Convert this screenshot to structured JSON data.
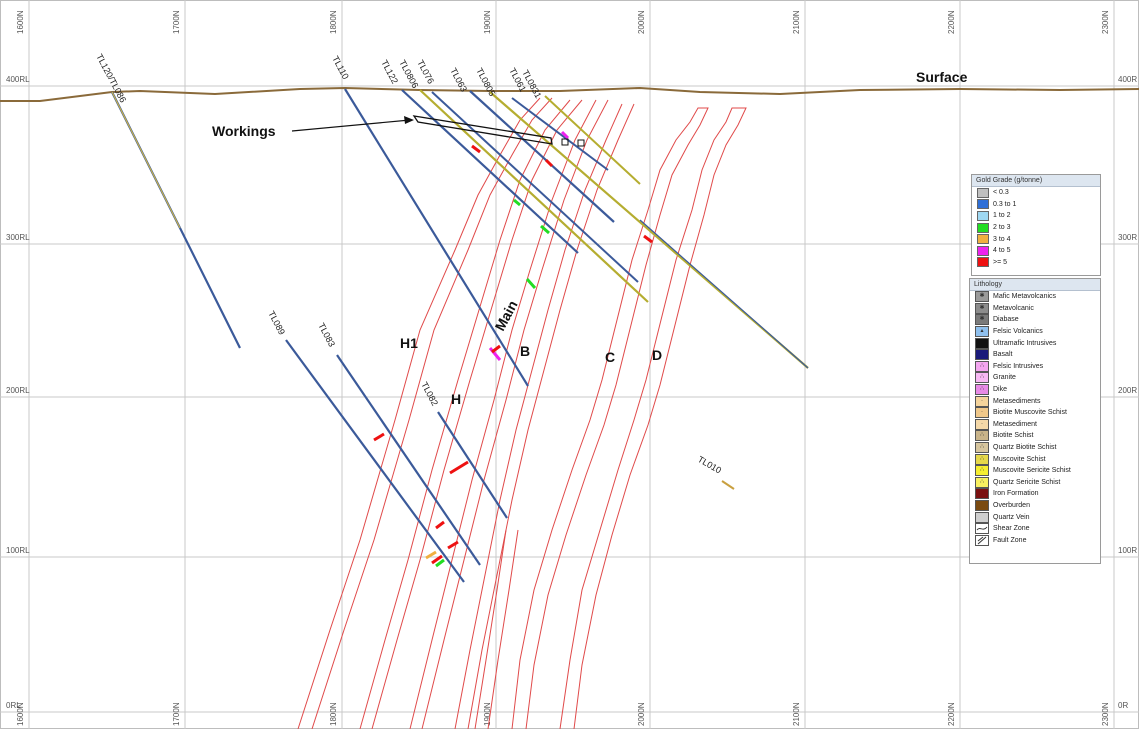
{
  "grid": {
    "easting_labels": [
      "1600N",
      "1700N",
      "1800N",
      "1900N",
      "2000N",
      "2100N",
      "2200N",
      "2300N"
    ],
    "rl_labels_left": [
      "400RL",
      "300RL",
      "200RL",
      "100RL",
      "0RL"
    ],
    "rl_labels_right": [
      "400R",
      "300R",
      "200R",
      "100R",
      "0R"
    ]
  },
  "labels": {
    "surface": "Surface",
    "workings": "Workings",
    "lodes": [
      "H1",
      "H",
      "Main",
      "B",
      "C",
      "D"
    ]
  },
  "drillholes": [
    {
      "name": "TL120/TL086"
    },
    {
      "name": "TL110"
    },
    {
      "name": "TL122"
    },
    {
      "name": "TL0806"
    },
    {
      "name": "TL076"
    },
    {
      "name": "TL063"
    },
    {
      "name": "TL0805"
    },
    {
      "name": "TL061"
    },
    {
      "name": "TL0831"
    },
    {
      "name": "TL089"
    },
    {
      "name": "TL083"
    },
    {
      "name": "TL082"
    },
    {
      "name": "TL010"
    }
  ],
  "legend_grade": {
    "title": "Gold Grade (g/tonne)",
    "items": [
      {
        "label": "< 0.3",
        "color": "#c0c0c0"
      },
      {
        "label": "0.3 to 1",
        "color": "#2f6fd6"
      },
      {
        "label": "1 to 2",
        "color": "#9fd8f2"
      },
      {
        "label": "2 to 3",
        "color": "#22dd22"
      },
      {
        "label": "3 to 4",
        "color": "#f0b040"
      },
      {
        "label": "4 to 5",
        "color": "#ee22ee"
      },
      {
        "label": ">= 5",
        "color": "#ee1111"
      }
    ]
  },
  "legend_lithology": {
    "title": "Lithology",
    "items": [
      {
        "label": "Mafic Metavolcanics",
        "color": "#9a9a9a"
      },
      {
        "label": "Metavolcanic",
        "color": "#8c8c8c"
      },
      {
        "label": "Diabase",
        "color": "#7a7a7a"
      },
      {
        "label": "Felsic Volcanics",
        "color": "#8fc0ee"
      },
      {
        "label": "Ultramafic Intrusives",
        "color": "#111111"
      },
      {
        "label": "Basalt",
        "color": "#1a1a7a"
      },
      {
        "label": "Felsic Intrusives",
        "color": "#f4a6f0"
      },
      {
        "label": "Granite",
        "color": "#f7b8f3"
      },
      {
        "label": "Dike",
        "color": "#e88ae6"
      },
      {
        "label": "Metasediments",
        "color": "#f5d49c"
      },
      {
        "label": "Biotite Muscovite Schist",
        "color": "#f0c88a"
      },
      {
        "label": "Metasediment",
        "color": "#f4d8a8"
      },
      {
        "label": "Biotite Schist",
        "color": "#c9b48a"
      },
      {
        "label": "Quartz Biotite Schist",
        "color": "#d6c59e"
      },
      {
        "label": "Muscovite Schist",
        "color": "#e6d84a"
      },
      {
        "label": "Muscovite Sericite Schist",
        "color": "#f6ee30"
      },
      {
        "label": "Quartz Sericite Schist",
        "color": "#f8f060"
      },
      {
        "label": "Iron Formation",
        "color": "#7a1010"
      },
      {
        "label": "Overburden",
        "color": "#7a4a10"
      },
      {
        "label": "Quartz Vein",
        "color": "#cfcfcf"
      },
      {
        "label": "Shear Zone",
        "color": "#ffffff"
      },
      {
        "label": "Fault Zone",
        "color": "#ffffff"
      }
    ]
  }
}
